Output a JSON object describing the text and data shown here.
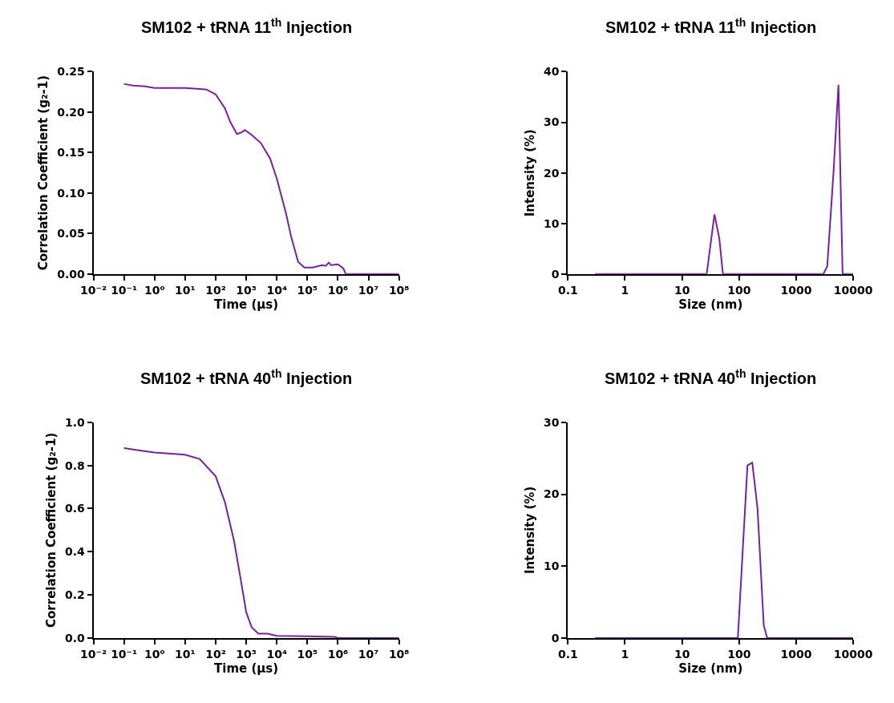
{
  "chart_data": [
    {
      "type": "line",
      "title": "SM102 + tRNA 11$^{th}$ Injection",
      "xlabel": "Time (µs)",
      "ylabel": "Correlation Coefficient (g₂-1)",
      "log": "x",
      "marker": "none",
      "line_style": "solid",
      "series": [
        {
          "color": "#7b1fa2",
          "x": [
            0.1,
            0.2,
            0.5,
            1,
            10,
            50,
            100,
            200,
            300,
            500,
            700,
            900,
            1500,
            3000,
            6000,
            10000,
            20000,
            30000,
            50000,
            80000,
            150000,
            300000,
            400000,
            500000,
            600000,
            1000000,
            1500000,
            1800000,
            100000000
          ],
          "values": [
            0.235,
            0.233,
            0.232,
            0.23,
            0.23,
            0.228,
            0.222,
            0.205,
            0.188,
            0.173,
            0.175,
            0.178,
            0.172,
            0.162,
            0.143,
            0.118,
            0.075,
            0.045,
            0.015,
            0.008,
            0.008,
            0.011,
            0.01,
            0.014,
            0.011,
            0.012,
            0.007,
            0,
            0
          ]
        }
      ],
      "xlim": [
        0.01,
        100000000
      ],
      "xticks": [
        {
          "value": 0.01,
          "label": "10⁻²"
        },
        {
          "value": 0.1,
          "label": "10⁻¹"
        },
        {
          "value": 1,
          "label": "10⁰"
        },
        {
          "value": 10,
          "label": "10¹"
        },
        {
          "value": 100,
          "label": "10²"
        },
        {
          "value": 1000,
          "label": "10³"
        },
        {
          "value": 10000,
          "label": "10⁴"
        },
        {
          "value": 100000,
          "label": "10⁵"
        },
        {
          "value": 1000000,
          "label": "10⁶"
        },
        {
          "value": 10000000,
          "label": "10⁷"
        },
        {
          "value": 100000000,
          "label": "10⁸"
        }
      ],
      "ylim": [
        0,
        0.25
      ],
      "yticks": [
        {
          "value": 0,
          "label": "0.00"
        },
        {
          "value": 0.05,
          "label": "0.05"
        },
        {
          "value": 0.1,
          "label": "0.10"
        },
        {
          "value": 0.15,
          "label": "0.15"
        },
        {
          "value": 0.2,
          "label": "0.20"
        },
        {
          "value": 0.25,
          "label": "0.25"
        }
      ]
    },
    {
      "type": "line",
      "title": "SM102 + tRNA 11$^{th}$ Injection",
      "xlabel": "Size (nm)",
      "ylabel": "Intensity (%)",
      "log": "x",
      "marker": "none",
      "line_style": "solid",
      "series": [
        {
          "color": "#7b1fa2",
          "x": [
            0.3,
            27,
            37,
            45,
            52,
            3000,
            3500,
            4500,
            5500,
            6500,
            10000
          ],
          "values": [
            0,
            0,
            11.8,
            7,
            0,
            0,
            1.5,
            20,
            37.4,
            0,
            0
          ]
        }
      ],
      "xlim": [
        0.1,
        10000
      ],
      "xticks": [
        0.1,
        1,
        10,
        100,
        1000,
        10000
      ],
      "ylim": [
        0,
        40
      ],
      "yticks": [
        0,
        10,
        20,
        30,
        40
      ]
    },
    {
      "type": "line",
      "title": "SM102 + tRNA 40$^{th}$ Injection",
      "xlabel": "Time (µs)",
      "ylabel": "Correlation Coefficient (g₂-1)",
      "log": "x",
      "marker": "none",
      "line_style": "solid",
      "series": [
        {
          "color": "#7b1fa2",
          "x": [
            0.1,
            0.3,
            1,
            10,
            30,
            100,
            200,
            400,
            700,
            1000,
            1500,
            2500,
            5000,
            10000,
            100000,
            800000,
            1000000,
            100000000
          ],
          "values": [
            0.88,
            0.87,
            0.86,
            0.85,
            0.83,
            0.75,
            0.63,
            0.45,
            0.25,
            0.12,
            0.05,
            0.02,
            0.02,
            0.01,
            0.008,
            0.005,
            0,
            0
          ]
        }
      ],
      "xlim": [
        0.01,
        100000000
      ],
      "xticks": [
        {
          "value": 0.01,
          "label": "10⁻²"
        },
        {
          "value": 0.1,
          "label": "10⁻¹"
        },
        {
          "value": 1,
          "label": "10⁰"
        },
        {
          "value": 10,
          "label": "10¹"
        },
        {
          "value": 100,
          "label": "10²"
        },
        {
          "value": 1000,
          "label": "10³"
        },
        {
          "value": 10000,
          "label": "10⁴"
        },
        {
          "value": 100000,
          "label": "10⁵"
        },
        {
          "value": 1000000,
          "label": "10⁶"
        },
        {
          "value": 10000000,
          "label": "10⁷"
        },
        {
          "value": 100000000,
          "label": "10⁸"
        }
      ],
      "ylim": [
        0,
        1
      ],
      "yticks": [
        {
          "value": 0,
          "label": "0.0"
        },
        {
          "value": 0.2,
          "label": "0.2"
        },
        {
          "value": 0.4,
          "label": "0.4"
        },
        {
          "value": 0.6,
          "label": "0.6"
        },
        {
          "value": 0.8,
          "label": "0.8"
        },
        {
          "value": 1,
          "label": "1.0"
        }
      ]
    },
    {
      "type": "line",
      "title": "SM102 + tRNA 40$^{th}$ Injection",
      "xlabel": "Size (nm)",
      "ylabel": "Intensity (%)",
      "log": "x",
      "marker": "none",
      "line_style": "solid",
      "series": [
        {
          "color": "#7b1fa2",
          "x": [
            0.3,
            95,
            140,
            170,
            210,
            270,
            310,
            10000
          ],
          "values": [
            0,
            0,
            24,
            24.4,
            18,
            1.8,
            0,
            0
          ]
        }
      ],
      "xlim": [
        0.1,
        10000
      ],
      "xticks": [
        0.1,
        1,
        10,
        100,
        1000,
        10000
      ],
      "ylim": [
        0,
        30
      ],
      "yticks": [
        0,
        10,
        20,
        30
      ]
    }
  ]
}
